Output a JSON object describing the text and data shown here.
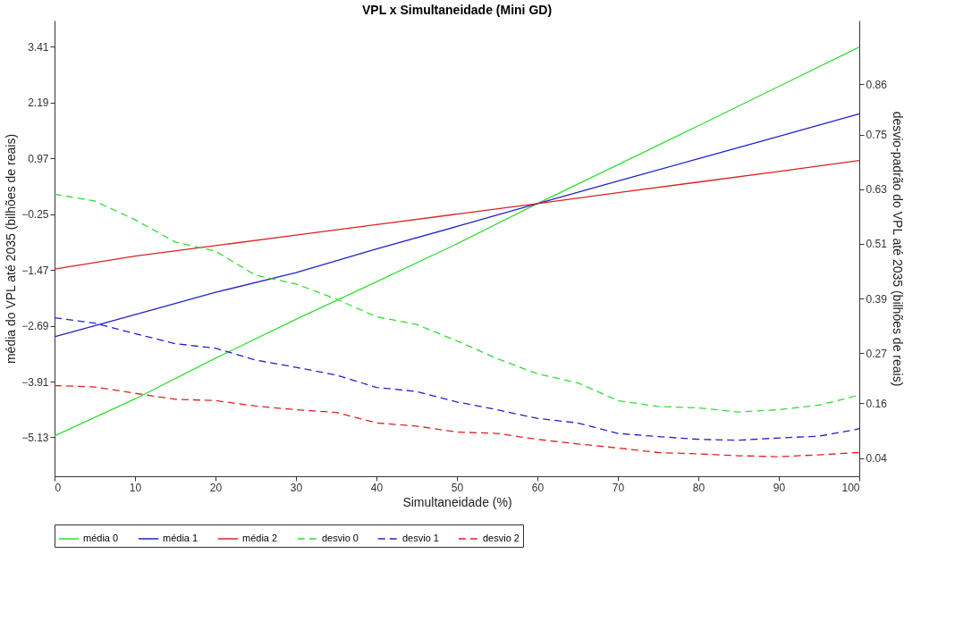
{
  "chart_data": {
    "type": "line",
    "title": "VPL x Simultaneidade (Mini GD)",
    "xlabel": "Simultaneidade (%)",
    "ylabel": "média do VPL até 2035 (bilhões de reais)",
    "y2label": "desvio-padrão do VPL até 2035 (bilhões de reais)",
    "xlim": [
      0,
      100
    ],
    "xticks": [
      0,
      10,
      20,
      30,
      40,
      50,
      60,
      70,
      80,
      90,
      100
    ],
    "ylim": [
      -5.98,
      3.98
    ],
    "yticks": [
      -5.13,
      -3.91,
      -2.69,
      -1.47,
      -0.25,
      0.97,
      2.19,
      3.41
    ],
    "y2lim": [
      0,
      1
    ],
    "y2ticks": [
      0.04,
      0.16,
      0.27,
      0.39,
      0.51,
      0.63,
      0.75,
      0.86
    ],
    "grid": false,
    "legend": "bottom",
    "marker": "none",
    "series": [
      {
        "name": "média 0",
        "color": "#33dd33",
        "line_style": "solid",
        "x": [
          0,
          10,
          20,
          30,
          40,
          50,
          60,
          70,
          80,
          90,
          100
        ],
        "values": [
          -5.1,
          -4.29,
          -3.4,
          -2.55,
          -1.73,
          -0.9,
          -0.02,
          0.83,
          1.68,
          2.54,
          3.4
        ]
      },
      {
        "name": "média 1",
        "color": "#2222cc",
        "line_style": "solid",
        "x": [
          0,
          10,
          20,
          30,
          40,
          50,
          60,
          70,
          80,
          90,
          100
        ],
        "values": [
          -2.93,
          -2.45,
          -1.96,
          -1.53,
          -1.01,
          -0.52,
          -0.02,
          0.47,
          0.96,
          1.45,
          1.94
        ]
      },
      {
        "name": "média 2",
        "color": "#dd2222",
        "line_style": "solid",
        "x": [
          0,
          10,
          20,
          30,
          40,
          50,
          60,
          70,
          80,
          90,
          100
        ],
        "values": [
          -1.45,
          -1.17,
          -0.94,
          -0.71,
          -0.48,
          -0.25,
          -0.02,
          0.22,
          0.45,
          0.68,
          0.92
        ]
      },
      {
        "name": "desvio 0",
        "color": "#33dd33",
        "line_style": "dashed",
        "axis": "y2",
        "x": [
          0,
          5,
          10,
          15,
          20,
          25,
          30,
          35,
          40,
          45,
          50,
          55,
          60,
          65,
          70,
          75,
          80,
          85,
          90,
          95,
          100
        ],
        "values": [
          0.619,
          0.604,
          0.563,
          0.514,
          0.494,
          0.441,
          0.422,
          0.389,
          0.35,
          0.333,
          0.297,
          0.258,
          0.225,
          0.205,
          0.166,
          0.153,
          0.15,
          0.141,
          0.146,
          0.156,
          0.178
        ]
      },
      {
        "name": "desvio 1",
        "color": "#2222cc",
        "line_style": "dashed",
        "axis": "y2",
        "x": [
          0,
          5,
          10,
          15,
          20,
          25,
          30,
          35,
          40,
          45,
          50,
          55,
          60,
          65,
          70,
          75,
          80,
          85,
          90,
          95,
          100
        ],
        "values": [
          0.348,
          0.336,
          0.313,
          0.291,
          0.281,
          0.255,
          0.239,
          0.222,
          0.195,
          0.186,
          0.163,
          0.146,
          0.127,
          0.117,
          0.094,
          0.087,
          0.081,
          0.079,
          0.084,
          0.088,
          0.104
        ]
      },
      {
        "name": "desvio 2",
        "color": "#dd2222",
        "line_style": "dashed",
        "axis": "y2",
        "x": [
          0,
          5,
          10,
          15,
          20,
          25,
          30,
          35,
          40,
          45,
          50,
          55,
          60,
          65,
          70,
          75,
          80,
          85,
          90,
          95,
          100
        ],
        "values": [
          0.199,
          0.196,
          0.182,
          0.169,
          0.166,
          0.154,
          0.146,
          0.14,
          0.117,
          0.11,
          0.097,
          0.094,
          0.081,
          0.071,
          0.062,
          0.052,
          0.049,
          0.045,
          0.043,
          0.047,
          0.052
        ]
      }
    ]
  }
}
